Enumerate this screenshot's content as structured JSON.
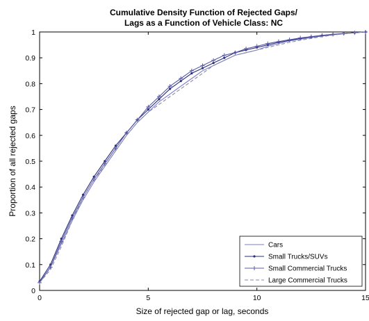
{
  "chart_data": {
    "type": "line",
    "title": [
      "Cumulative Density Function of Rejected Gaps/",
      "Lags as a Function of Vehicle Class: NC"
    ],
    "xlabel": "Size of rejected gap or lag, seconds",
    "ylabel": "Proportion of all rejected gaps",
    "xlim": [
      0,
      15
    ],
    "ylim": [
      0,
      1
    ],
    "xticks": [
      0,
      5,
      10,
      15
    ],
    "yticks": [
      0,
      0.1,
      0.2,
      0.3,
      0.4,
      0.5,
      0.6,
      0.7,
      0.8,
      0.9,
      1
    ],
    "grid": false,
    "legend_position": "bottom-right",
    "x": [
      0,
      0.5,
      1,
      1.5,
      2,
      2.5,
      3,
      3.5,
      4,
      4.5,
      5,
      5.5,
      6,
      6.5,
      7,
      7.5,
      8,
      8.5,
      9,
      9.5,
      10,
      10.5,
      11,
      11.5,
      12,
      12.5,
      13,
      13.5,
      14,
      14.5,
      15
    ],
    "series": [
      {
        "name": "Cars",
        "color": "#7b7bd4",
        "style": "solid",
        "marker": "none",
        "values": [
          0.03,
          0.09,
          0.18,
          0.27,
          0.35,
          0.42,
          0.48,
          0.54,
          0.6,
          0.65,
          0.69,
          0.73,
          0.76,
          0.79,
          0.82,
          0.85,
          0.87,
          0.89,
          0.91,
          0.92,
          0.93,
          0.945,
          0.955,
          0.965,
          0.972,
          0.978,
          0.984,
          0.989,
          0.993,
          0.997,
          1.0
        ]
      },
      {
        "name": "Small Trucks/SUVs",
        "color": "#2a2f7a",
        "style": "solid",
        "marker": "dot",
        "values": [
          0.035,
          0.1,
          0.2,
          0.29,
          0.37,
          0.44,
          0.5,
          0.56,
          0.61,
          0.66,
          0.7,
          0.74,
          0.78,
          0.81,
          0.84,
          0.86,
          0.88,
          0.9,
          0.92,
          0.93,
          0.94,
          0.95,
          0.96,
          0.968,
          0.975,
          0.981,
          0.986,
          0.99,
          0.994,
          0.997,
          1.0
        ]
      },
      {
        "name": "Small Commercial Trucks",
        "color": "#5a5aa8",
        "style": "solid",
        "marker": "plus",
        "values": [
          0.03,
          0.09,
          0.19,
          0.28,
          0.36,
          0.43,
          0.49,
          0.55,
          0.61,
          0.66,
          0.71,
          0.75,
          0.79,
          0.82,
          0.85,
          0.87,
          0.89,
          0.91,
          0.92,
          0.935,
          0.945,
          0.955,
          0.963,
          0.97,
          0.977,
          0.982,
          0.987,
          0.991,
          0.994,
          0.997,
          1.0
        ]
      },
      {
        "name": "Large Commercial Trucks",
        "color": "#8a8a9a",
        "style": "dashed",
        "marker": "none",
        "values": [
          0.03,
          0.08,
          0.17,
          0.27,
          0.36,
          0.43,
          0.48,
          0.54,
          0.6,
          0.65,
          0.69,
          0.72,
          0.75,
          0.78,
          0.81,
          0.84,
          0.87,
          0.89,
          0.91,
          0.92,
          0.93,
          0.94,
          0.95,
          0.96,
          0.968,
          0.975,
          0.982,
          0.988,
          0.993,
          0.997,
          1.0
        ]
      }
    ]
  }
}
